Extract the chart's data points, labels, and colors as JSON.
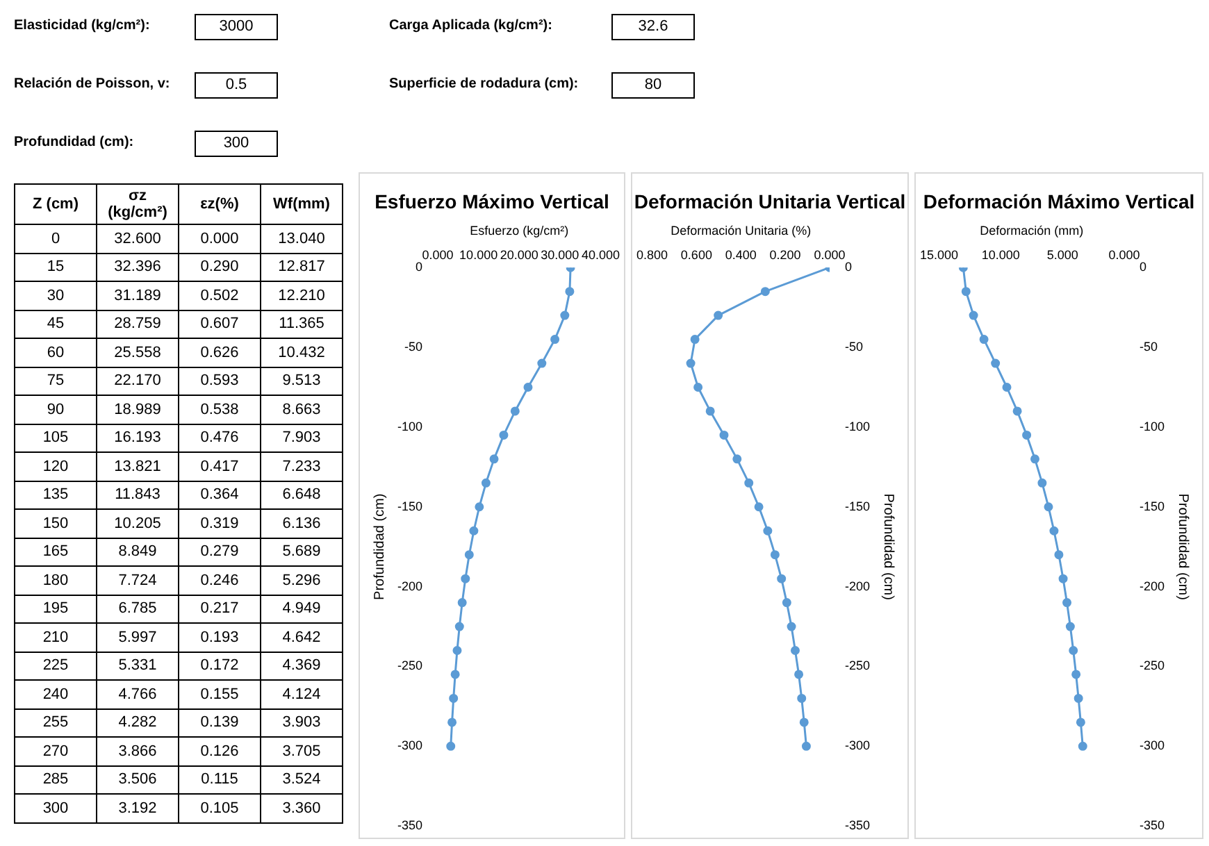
{
  "chart_data": [
    {
      "type": "other",
      "annotations": [
        "Elasticidad (kg/cm²):",
        "3000",
        "Carga Aplicada (kg/cm²):",
        "32.6",
        "Relación de Poisson, v:",
        "0.5",
        "Superficie de rodadura (cm):",
        "80",
        "Profundidad (cm):",
        "300"
      ]
    },
    {
      "type": "heatmap",
      "ylabel": "Z (cm)",
      "categories": [
        "σz (kg/cm²)",
        "εz(%)",
        "Wf(mm)"
      ],
      "y_categories": [
        "0",
        "15",
        "30",
        "45",
        "60",
        "75",
        "90",
        "105",
        "120",
        "135",
        "150",
        "165",
        "180",
        "195",
        "210",
        "225",
        "240",
        "255",
        "270",
        "285",
        "300"
      ],
      "cells": [
        [
          32.6,
          0,
          13.04
        ],
        [
          32.396,
          0.29,
          12.817
        ],
        [
          31.189,
          0.502,
          12.21
        ],
        [
          28.759,
          0.607,
          11.365
        ],
        [
          25.558,
          0.626,
          10.432
        ],
        [
          22.17,
          0.593,
          9.513
        ],
        [
          18.989,
          0.538,
          8.663
        ],
        [
          16.193,
          0.476,
          7.903
        ],
        [
          13.821,
          0.417,
          7.233
        ],
        [
          11.843,
          0.364,
          6.648
        ],
        [
          10.205,
          0.319,
          6.136
        ],
        [
          8.849,
          0.279,
          5.689
        ],
        [
          7.724,
          0.246,
          5.296
        ],
        [
          6.785,
          0.217,
          4.949
        ],
        [
          5.997,
          0.193,
          4.642
        ],
        [
          5.331,
          0.172,
          4.369
        ],
        [
          4.766,
          0.155,
          4.124
        ],
        [
          4.282,
          0.139,
          3.903
        ],
        [
          3.866,
          0.126,
          3.705
        ],
        [
          3.506,
          0.115,
          3.524
        ],
        [
          3.192,
          0.105,
          3.36
        ]
      ],
      "cell_labels": [
        [
          "32.600",
          "0.000",
          "13.040"
        ],
        [
          "32.396",
          "0.290",
          "12.817"
        ],
        [
          "31.189",
          "0.502",
          "12.210"
        ],
        [
          "28.759",
          "0.607",
          "11.365"
        ],
        [
          "25.558",
          "0.626",
          "10.432"
        ],
        [
          "22.170",
          "0.593",
          "9.513"
        ],
        [
          "18.989",
          "0.538",
          "8.663"
        ],
        [
          "16.193",
          "0.476",
          "7.903"
        ],
        [
          "13.821",
          "0.417",
          "7.233"
        ],
        [
          "11.843",
          "0.364",
          "6.648"
        ],
        [
          "10.205",
          "0.319",
          "6.136"
        ],
        [
          "8.849",
          "0.279",
          "5.689"
        ],
        [
          "7.724",
          "0.246",
          "5.296"
        ],
        [
          "6.785",
          "0.217",
          "4.949"
        ],
        [
          "5.997",
          "0.193",
          "4.642"
        ],
        [
          "5.331",
          "0.172",
          "4.369"
        ],
        [
          "4.766",
          "0.155",
          "4.124"
        ],
        [
          "4.282",
          "0.139",
          "3.903"
        ],
        [
          "3.866",
          "0.126",
          "3.705"
        ],
        [
          "3.506",
          "0.115",
          "3.524"
        ],
        [
          "3.192",
          "0.105",
          "3.360"
        ]
      ],
      "data_labels": true
    },
    {
      "type": "line",
      "title": "Esfuerzo Máximo Vertical",
      "xlabel": "Esfuerzo (kg/cm²)",
      "ylabel": "Profundidad (cm)",
      "xlim": [
        0,
        40
      ],
      "xticks": [
        {
          "value": 0,
          "label": "0.000"
        },
        {
          "value": 10,
          "label": "10.000"
        },
        {
          "value": 20,
          "label": "20.000"
        },
        {
          "value": 30,
          "label": "30.000"
        },
        {
          "value": 40,
          "label": "40.000"
        }
      ],
      "ylim": [
        -350,
        0
      ],
      "yticks": [
        0,
        -50,
        -100,
        -150,
        -200,
        -250,
        -300,
        -350
      ],
      "marker": "circle",
      "grid": false,
      "legend": false,
      "series": [
        {
          "color": "#5b9bd5",
          "x": [
            32.6,
            32.396,
            31.189,
            28.759,
            25.558,
            22.17,
            18.989,
            16.193,
            13.821,
            11.843,
            10.205,
            8.849,
            7.724,
            6.785,
            5.997,
            5.331,
            4.766,
            4.282,
            3.866,
            3.506,
            3.192
          ],
          "values": [
            0,
            -15,
            -30,
            -45,
            -60,
            -75,
            -90,
            -105,
            -120,
            -135,
            -150,
            -165,
            -180,
            -195,
            -210,
            -225,
            -240,
            -255,
            -270,
            -285,
            -300
          ]
        }
      ]
    },
    {
      "type": "line",
      "title": "Deformación Unitaria Vertical",
      "xlabel": "Deformación Unitaria (%)",
      "ylabel": "Profundidad (cm)",
      "xlim": [
        0.8,
        0
      ],
      "xticks": [
        {
          "value": 0.8,
          "label": "0.800"
        },
        {
          "value": 0.6,
          "label": "0.600"
        },
        {
          "value": 0.4,
          "label": "0.400"
        },
        {
          "value": 0.2,
          "label": "0.200"
        },
        {
          "value": 0,
          "label": "0.000"
        }
      ],
      "ylim": [
        -350,
        0
      ],
      "yticks": [
        0,
        -50,
        -100,
        -150,
        -200,
        -250,
        -300,
        -350
      ],
      "marker": "circle",
      "grid": false,
      "legend": false,
      "series": [
        {
          "color": "#5b9bd5",
          "x": [
            0,
            0.29,
            0.502,
            0.607,
            0.626,
            0.593,
            0.538,
            0.476,
            0.417,
            0.364,
            0.319,
            0.279,
            0.246,
            0.217,
            0.193,
            0.172,
            0.155,
            0.139,
            0.126,
            0.115,
            0.105
          ],
          "values": [
            0,
            -15,
            -30,
            -45,
            -60,
            -75,
            -90,
            -105,
            -120,
            -135,
            -150,
            -165,
            -180,
            -195,
            -210,
            -225,
            -240,
            -255,
            -270,
            -285,
            -300
          ]
        }
      ]
    },
    {
      "type": "line",
      "title": "Deformación Máximo Vertical",
      "xlabel": "Deformación (mm)",
      "ylabel": "Profundidad (cm)",
      "xlim": [
        15,
        0
      ],
      "xticks": [
        {
          "value": 15,
          "label": "15.000"
        },
        {
          "value": 10,
          "label": "10.000"
        },
        {
          "value": 5,
          "label": "5.000"
        },
        {
          "value": 0,
          "label": "0.000"
        }
      ],
      "ylim": [
        -350,
        0
      ],
      "yticks": [
        0,
        -50,
        -100,
        -150,
        -200,
        -250,
        -300,
        -350
      ],
      "marker": "circle",
      "grid": false,
      "legend": false,
      "series": [
        {
          "color": "#5b9bd5",
          "x": [
            13.04,
            12.817,
            12.21,
            11.365,
            10.432,
            9.513,
            8.663,
            7.903,
            7.233,
            6.648,
            6.136,
            5.689,
            5.296,
            4.949,
            4.642,
            4.369,
            4.124,
            3.903,
            3.705,
            3.524,
            3.36
          ],
          "values": [
            0,
            -15,
            -30,
            -45,
            -60,
            -75,
            -90,
            -105,
            -120,
            -135,
            -150,
            -165,
            -180,
            -195,
            -210,
            -225,
            -240,
            -255,
            -270,
            -285,
            -300
          ]
        }
      ]
    }
  ]
}
